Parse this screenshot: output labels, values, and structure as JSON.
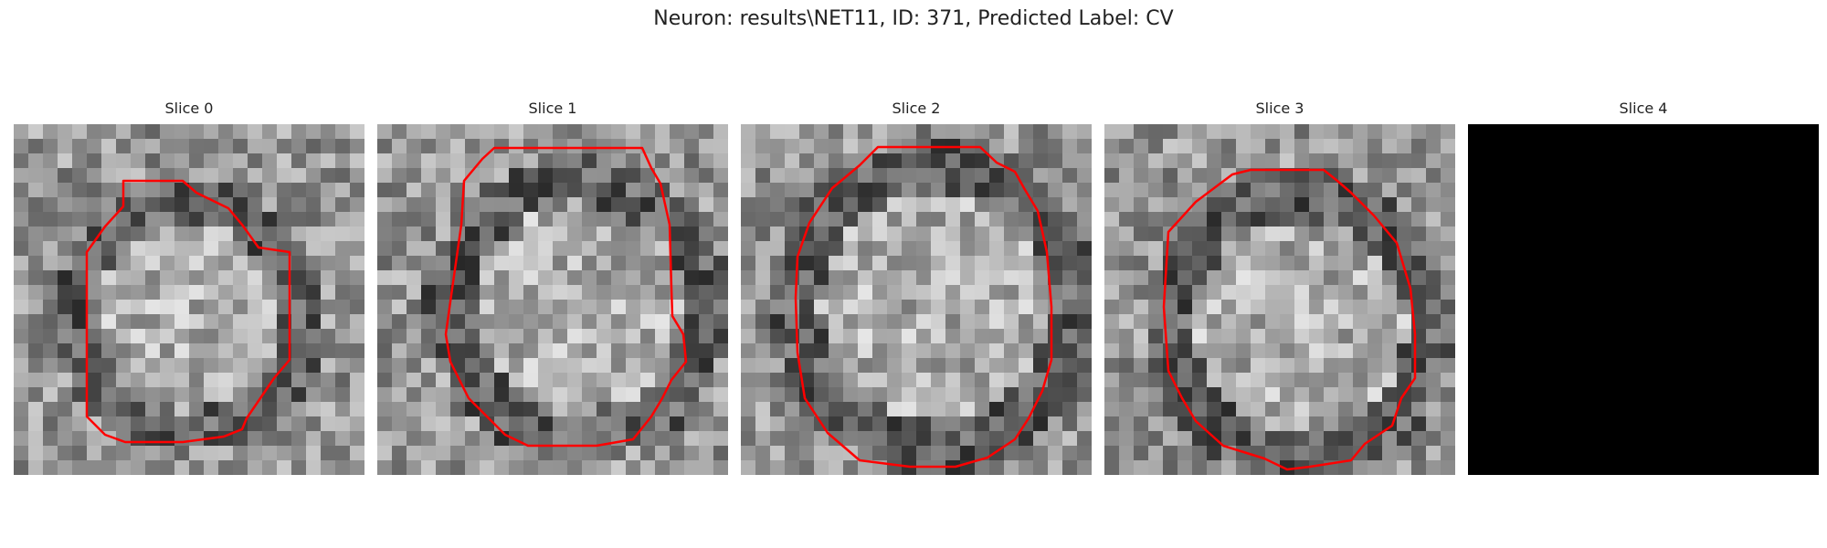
{
  "figure": {
    "title": "Neuron: results\\NET11, ID: 371, Predicted Label: CV"
  },
  "panels": [
    {
      "title": "Slice 0",
      "has_contour": true,
      "blank": false
    },
    {
      "title": "Slice 1",
      "has_contour": true,
      "blank": false
    },
    {
      "title": "Slice 2",
      "has_contour": true,
      "blank": false
    },
    {
      "title": "Slice 3",
      "has_contour": true,
      "blank": false
    },
    {
      "title": "Slice 4",
      "has_contour": false,
      "blank": true
    }
  ],
  "colors": {
    "contour": "#ff0000",
    "blank_slice": "#000000"
  }
}
